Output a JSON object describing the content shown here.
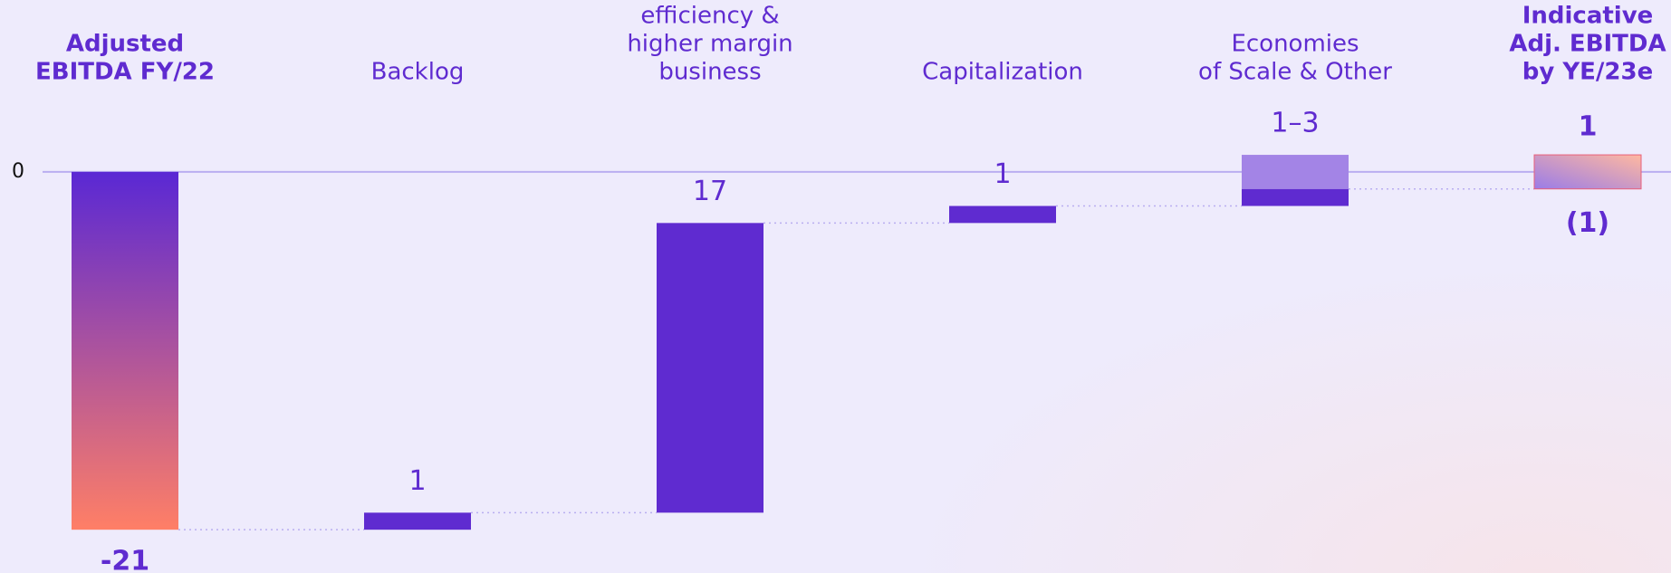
{
  "chart_data": {
    "type": "waterfall",
    "categories": [
      [
        "Adjusted",
        "EBITDA FY/22"
      ],
      [
        "Backlog"
      ],
      [
        "efficiency &",
        "higher margin",
        "business"
      ],
      [
        "Capitalization"
      ],
      [
        "Economies",
        "of Scale & Other"
      ],
      [
        "Indicative",
        "Adj. EBITDA",
        "by YE/23e"
      ]
    ],
    "values": [
      -21,
      1,
      17,
      1,
      1,
      -1
    ],
    "value_labels": [
      "-21",
      "1",
      "17",
      "1",
      "1–3",
      "(1)"
    ],
    "values_high": [
      null,
      null,
      null,
      null,
      3,
      1
    ],
    "color": "#5f2bd0",
    "range_color": "#a384e6",
    "ylim": [
      -22,
      3.5
    ],
    "yticks": [
      0
    ]
  }
}
